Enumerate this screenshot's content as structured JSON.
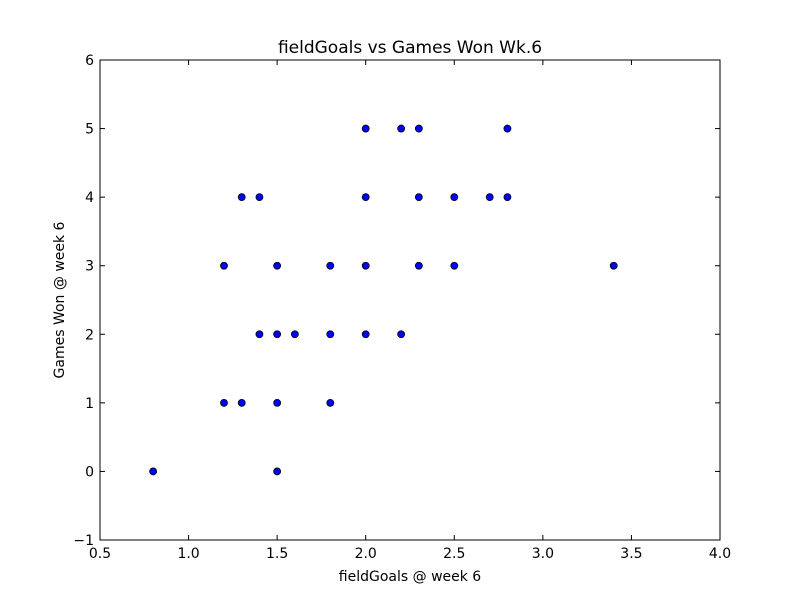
{
  "chart_data": {
    "type": "scatter",
    "title": "fieldGoals vs Games Won Wk.6",
    "xlabel": "fieldGoals @ week 6",
    "ylabel": "Games Won @ week 6",
    "xlim": [
      0.5,
      4.0
    ],
    "ylim": [
      -1,
      6
    ],
    "xticks": [
      0.5,
      1.0,
      1.5,
      2.0,
      2.5,
      3.0,
      3.5,
      4.0
    ],
    "xtick_labels": [
      "0.5",
      "1.0",
      "1.5",
      "2.0",
      "2.5",
      "3.0",
      "3.5",
      "4.0"
    ],
    "yticks": [
      -1,
      0,
      1,
      2,
      3,
      4,
      5,
      6
    ],
    "ytick_labels": [
      "−1",
      "0",
      "1",
      "2",
      "3",
      "4",
      "5",
      "6"
    ],
    "grid": false,
    "marker_color": "#0000ff",
    "points": [
      {
        "x": 0.8,
        "y": 0
      },
      {
        "x": 1.5,
        "y": 0
      },
      {
        "x": 1.2,
        "y": 1
      },
      {
        "x": 1.3,
        "y": 1
      },
      {
        "x": 1.5,
        "y": 1
      },
      {
        "x": 1.8,
        "y": 1
      },
      {
        "x": 1.4,
        "y": 2
      },
      {
        "x": 1.5,
        "y": 2
      },
      {
        "x": 1.6,
        "y": 2
      },
      {
        "x": 1.8,
        "y": 2
      },
      {
        "x": 2.0,
        "y": 2
      },
      {
        "x": 2.2,
        "y": 2
      },
      {
        "x": 1.2,
        "y": 3
      },
      {
        "x": 1.5,
        "y": 3
      },
      {
        "x": 1.8,
        "y": 3
      },
      {
        "x": 2.0,
        "y": 3
      },
      {
        "x": 2.3,
        "y": 3
      },
      {
        "x": 2.5,
        "y": 3
      },
      {
        "x": 3.4,
        "y": 3
      },
      {
        "x": 1.3,
        "y": 4
      },
      {
        "x": 1.4,
        "y": 4
      },
      {
        "x": 2.0,
        "y": 4
      },
      {
        "x": 2.3,
        "y": 4
      },
      {
        "x": 2.5,
        "y": 4
      },
      {
        "x": 2.7,
        "y": 4
      },
      {
        "x": 2.8,
        "y": 4
      },
      {
        "x": 2.0,
        "y": 5
      },
      {
        "x": 2.2,
        "y": 5
      },
      {
        "x": 2.3,
        "y": 5
      },
      {
        "x": 2.8,
        "y": 5
      }
    ]
  }
}
